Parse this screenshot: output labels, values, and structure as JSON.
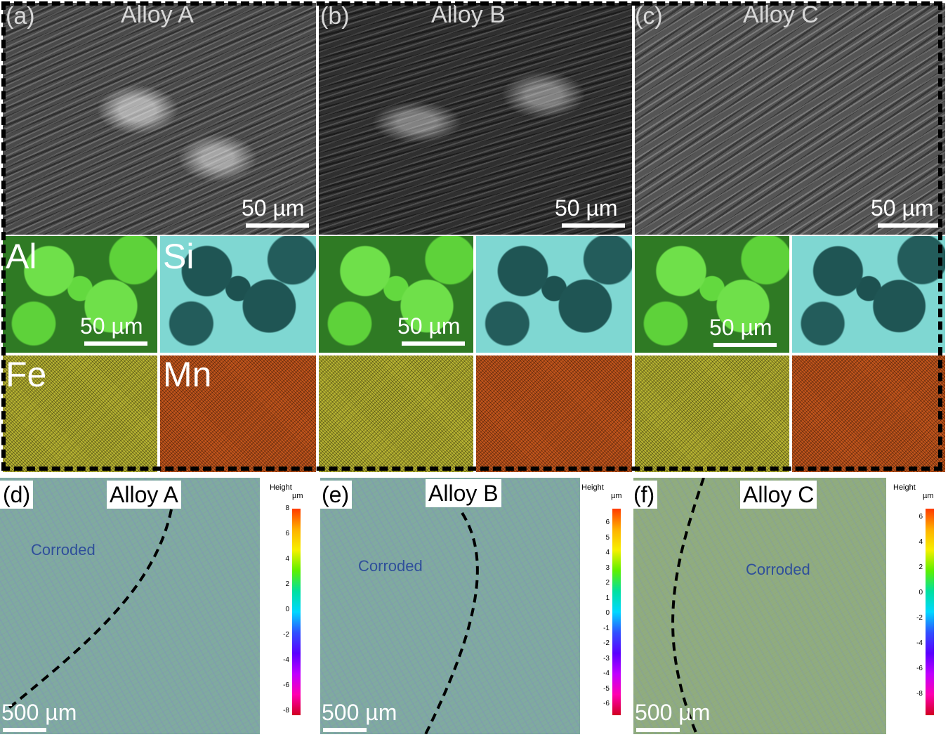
{
  "top_row": {
    "a": {
      "letter": "(a)",
      "title": "Alloy A",
      "scale": "50 µm"
    },
    "b": {
      "letter": "(b)",
      "title": "Alloy B",
      "scale": "50 µm"
    },
    "c": {
      "letter": "(c)",
      "title": "Alloy C",
      "scale": "50 µm"
    }
  },
  "eds": {
    "al": "Al",
    "si": "Si",
    "fe": "Fe",
    "mn": "Mn",
    "scale": "50 µm"
  },
  "bottom_row": {
    "d": {
      "letter": "(d)",
      "title": "Alloy A",
      "corroded": "Corroded",
      "scale": "500 µm"
    },
    "e": {
      "letter": "(e)",
      "title": "Alloy B",
      "corroded": "Corroded",
      "scale": "500 µm"
    },
    "f": {
      "letter": "(f)",
      "title": "Alloy C",
      "corroded": "Corroded",
      "scale": "500 µm"
    }
  },
  "colorbars": {
    "title": "Height",
    "unit": "µm",
    "d_ticks": [
      "8",
      "6",
      "4",
      "2",
      "0",
      "-2",
      "-4",
      "-6",
      "-8"
    ],
    "e_ticks": [
      "6",
      "5",
      "4",
      "3",
      "2",
      "1",
      "0",
      "-1",
      "-2",
      "-3",
      "-4",
      "-5",
      "-6"
    ],
    "f_ticks": [
      "6",
      "4",
      "2",
      "0",
      "-2",
      "-4",
      "-6",
      "-8"
    ]
  },
  "colors": {
    "dashed_border": "#000000",
    "al_map": "#63d93f",
    "si_map": "#7fd7d2",
    "fe_map": "#b9b532",
    "mn_map": "#c4561c",
    "corroded_text": "#2f4f9a"
  }
}
